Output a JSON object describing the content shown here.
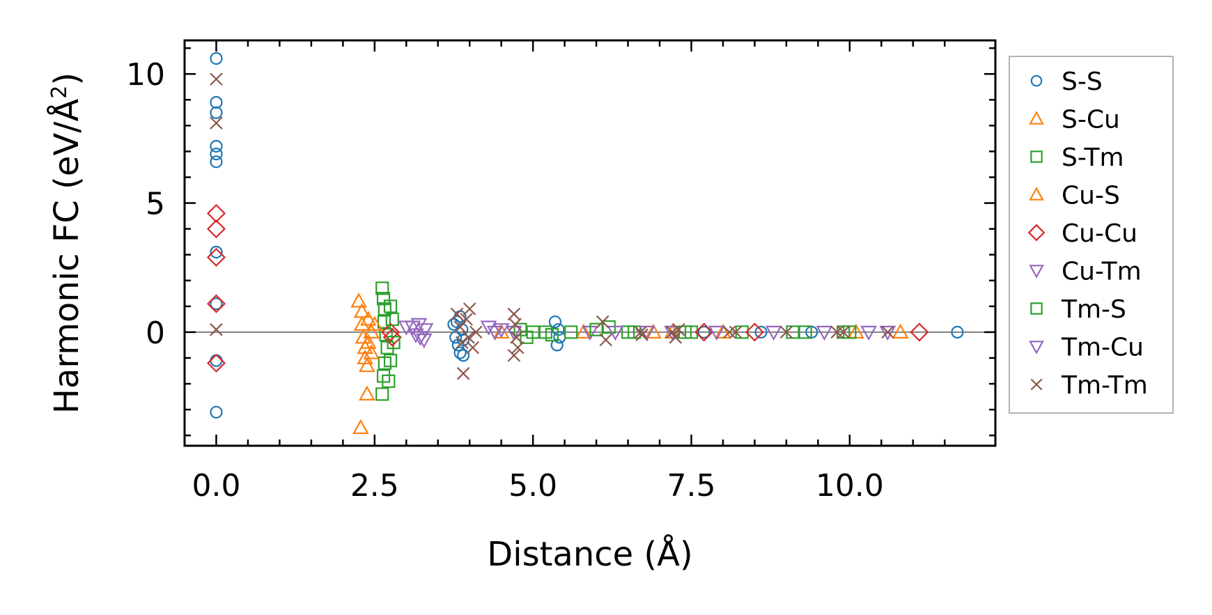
{
  "chart_data": {
    "type": "scatter",
    "xlabel": "Distance (Å)",
    "ylabel_main": "Harmonic FC (eV/Å",
    "ylabel_sup": "2",
    "ylabel_end": ")",
    "xlim": [
      -0.5,
      12.3
    ],
    "ylim": [
      -4.4,
      11.3
    ],
    "xticks": [
      0.0,
      2.5,
      5.0,
      7.5,
      10.0
    ],
    "xtick_labels": [
      "0.0",
      "2.5",
      "5.0",
      "7.5",
      "10.0"
    ],
    "yticks": [
      0,
      5,
      10
    ],
    "ytick_labels": [
      "0",
      "5",
      "10"
    ],
    "hline": 0,
    "legend_position": "right-outside",
    "series": [
      {
        "name": "S-S",
        "marker": "circle",
        "color": "#1f77b4",
        "points": [
          [
            0,
            10.6
          ],
          [
            0,
            8.9
          ],
          [
            0,
            8.5
          ],
          [
            0,
            7.2
          ],
          [
            0,
            6.9
          ],
          [
            0,
            6.6
          ],
          [
            0,
            3.1
          ],
          [
            0,
            1.1
          ],
          [
            0,
            -1.1
          ],
          [
            0,
            -3.1
          ],
          [
            3.75,
            0.3
          ],
          [
            3.78,
            -0.2
          ],
          [
            3.8,
            0.4
          ],
          [
            3.82,
            -0.5
          ],
          [
            3.85,
            -0.8
          ],
          [
            3.85,
            0.6
          ],
          [
            3.88,
            0.1
          ],
          [
            3.9,
            -0.9
          ],
          [
            3.9,
            -0.3
          ],
          [
            5.35,
            0.4
          ],
          [
            5.38,
            -0.5
          ],
          [
            5.4,
            0.1
          ],
          [
            5.42,
            -0.2
          ],
          [
            7.7,
            0.0
          ],
          [
            8.6,
            0.0
          ],
          [
            9.4,
            0.0
          ],
          [
            11.7,
            0.0
          ]
        ]
      },
      {
        "name": "S-Cu",
        "marker": "triangle-up",
        "color": "#ff7f0e",
        "points": [
          [
            2.25,
            1.2
          ],
          [
            2.3,
            0.8
          ],
          [
            2.3,
            0.3
          ],
          [
            2.32,
            -0.2
          ],
          [
            2.35,
            -0.6
          ],
          [
            2.35,
            -1.0
          ],
          [
            2.38,
            -1.3
          ],
          [
            2.4,
            0.5
          ],
          [
            2.4,
            -0.4
          ],
          [
            2.28,
            -3.7
          ],
          [
            2.38,
            -2.4
          ],
          [
            4.5,
            0.0
          ],
          [
            5.8,
            0.0
          ],
          [
            6.9,
            0.0
          ],
          [
            10.8,
            0.0
          ]
        ]
      },
      {
        "name": "S-Tm",
        "marker": "square",
        "color": "#2ca02c",
        "points": [
          [
            2.62,
            1.7
          ],
          [
            2.64,
            1.3
          ],
          [
            2.66,
            0.9
          ],
          [
            2.65,
            0.4
          ],
          [
            2.68,
            -0.1
          ],
          [
            2.7,
            -0.6
          ],
          [
            2.66,
            -1.2
          ],
          [
            2.64,
            -1.7
          ],
          [
            2.62,
            -2.4
          ],
          [
            2.75,
            1.0
          ],
          [
            2.75,
            -1.1
          ],
          [
            2.72,
            -1.9
          ],
          [
            5.0,
            0.0
          ],
          [
            5.6,
            0.0
          ],
          [
            6.2,
            0.2
          ],
          [
            6.5,
            0.0
          ],
          [
            7.5,
            0.0
          ],
          [
            8.3,
            0.0
          ],
          [
            9.1,
            0.0
          ],
          [
            9.9,
            0.0
          ]
        ]
      },
      {
        "name": "Cu-S",
        "marker": "triangle-up",
        "color": "#ff7f0e",
        "points": [
          [
            2.45,
            0.0
          ],
          [
            2.5,
            0.3
          ],
          [
            2.45,
            -0.8
          ],
          [
            7.2,
            0.0
          ],
          [
            8.0,
            0.0
          ],
          [
            10.1,
            0.0
          ]
        ]
      },
      {
        "name": "Cu-Cu",
        "marker": "diamond",
        "color": "#d62728",
        "points": [
          [
            0,
            4.6
          ],
          [
            0,
            4.0
          ],
          [
            0,
            2.9
          ],
          [
            0,
            1.1
          ],
          [
            0,
            -1.2
          ],
          [
            2.75,
            0.0
          ],
          [
            2.78,
            -0.2
          ],
          [
            7.7,
            0.0
          ],
          [
            8.5,
            0.0
          ],
          [
            11.1,
            0.0
          ]
        ]
      },
      {
        "name": "Cu-Tm",
        "marker": "triangle-down",
        "color": "#9467bd",
        "points": [
          [
            3.1,
            0.2
          ],
          [
            3.15,
            -0.1
          ],
          [
            3.2,
            0.3
          ],
          [
            3.22,
            -0.2
          ],
          [
            3.3,
            0.1
          ],
          [
            3.28,
            -0.3
          ],
          [
            4.3,
            0.2
          ],
          [
            4.4,
            0.0
          ],
          [
            4.5,
            0.1
          ],
          [
            5.9,
            0.0
          ],
          [
            6.3,
            0.0
          ],
          [
            7.2,
            0.0
          ],
          [
            8.8,
            0.0
          ],
          [
            10.3,
            0.0
          ]
        ]
      },
      {
        "name": "Tm-S",
        "marker": "square",
        "color": "#2ca02c",
        "points": [
          [
            2.78,
            0.5
          ],
          [
            2.8,
            -0.4
          ],
          [
            4.8,
            0.1
          ],
          [
            4.9,
            -0.2
          ],
          [
            5.2,
            0.0
          ],
          [
            5.3,
            -0.1
          ],
          [
            6.0,
            0.1
          ],
          [
            6.6,
            0.0
          ],
          [
            7.4,
            0.0
          ],
          [
            9.3,
            0.0
          ],
          [
            10.0,
            0.0
          ]
        ]
      },
      {
        "name": "Tm-Cu",
        "marker": "triangle-down",
        "color": "#9467bd",
        "points": [
          [
            3.0,
            0.2
          ],
          [
            4.7,
            0.0
          ],
          [
            6.8,
            0.0
          ],
          [
            7.9,
            0.0
          ],
          [
            9.6,
            0.0
          ],
          [
            10.6,
            0.0
          ]
        ]
      },
      {
        "name": "Tm-Tm",
        "marker": "x",
        "color": "#8c564b",
        "points": [
          [
            0,
            9.8
          ],
          [
            0,
            8.1
          ],
          [
            0,
            0.1
          ],
          [
            3.8,
            0.7
          ],
          [
            3.85,
            0.2
          ],
          [
            3.88,
            -0.4
          ],
          [
            3.9,
            -1.6
          ],
          [
            3.95,
            0.5
          ],
          [
            3.98,
            -0.2
          ],
          [
            4.0,
            0.9
          ],
          [
            4.05,
            -0.6
          ],
          [
            4.1,
            0.0
          ],
          [
            4.7,
            0.7
          ],
          [
            4.72,
            0.3
          ],
          [
            4.74,
            -0.2
          ],
          [
            4.76,
            -0.6
          ],
          [
            4.7,
            -0.9
          ],
          [
            6.1,
            0.4
          ],
          [
            6.15,
            -0.3
          ],
          [
            6.7,
            0.0
          ],
          [
            6.72,
            -0.1
          ],
          [
            7.2,
            0.0
          ],
          [
            7.25,
            -0.2
          ],
          [
            7.3,
            0.1
          ],
          [
            8.1,
            0.0
          ],
          [
            8.2,
            0.0
          ],
          [
            9.0,
            0.0
          ],
          [
            9.8,
            0.0
          ],
          [
            9.9,
            0.0
          ],
          [
            10.6,
            0.0
          ]
        ]
      }
    ]
  }
}
